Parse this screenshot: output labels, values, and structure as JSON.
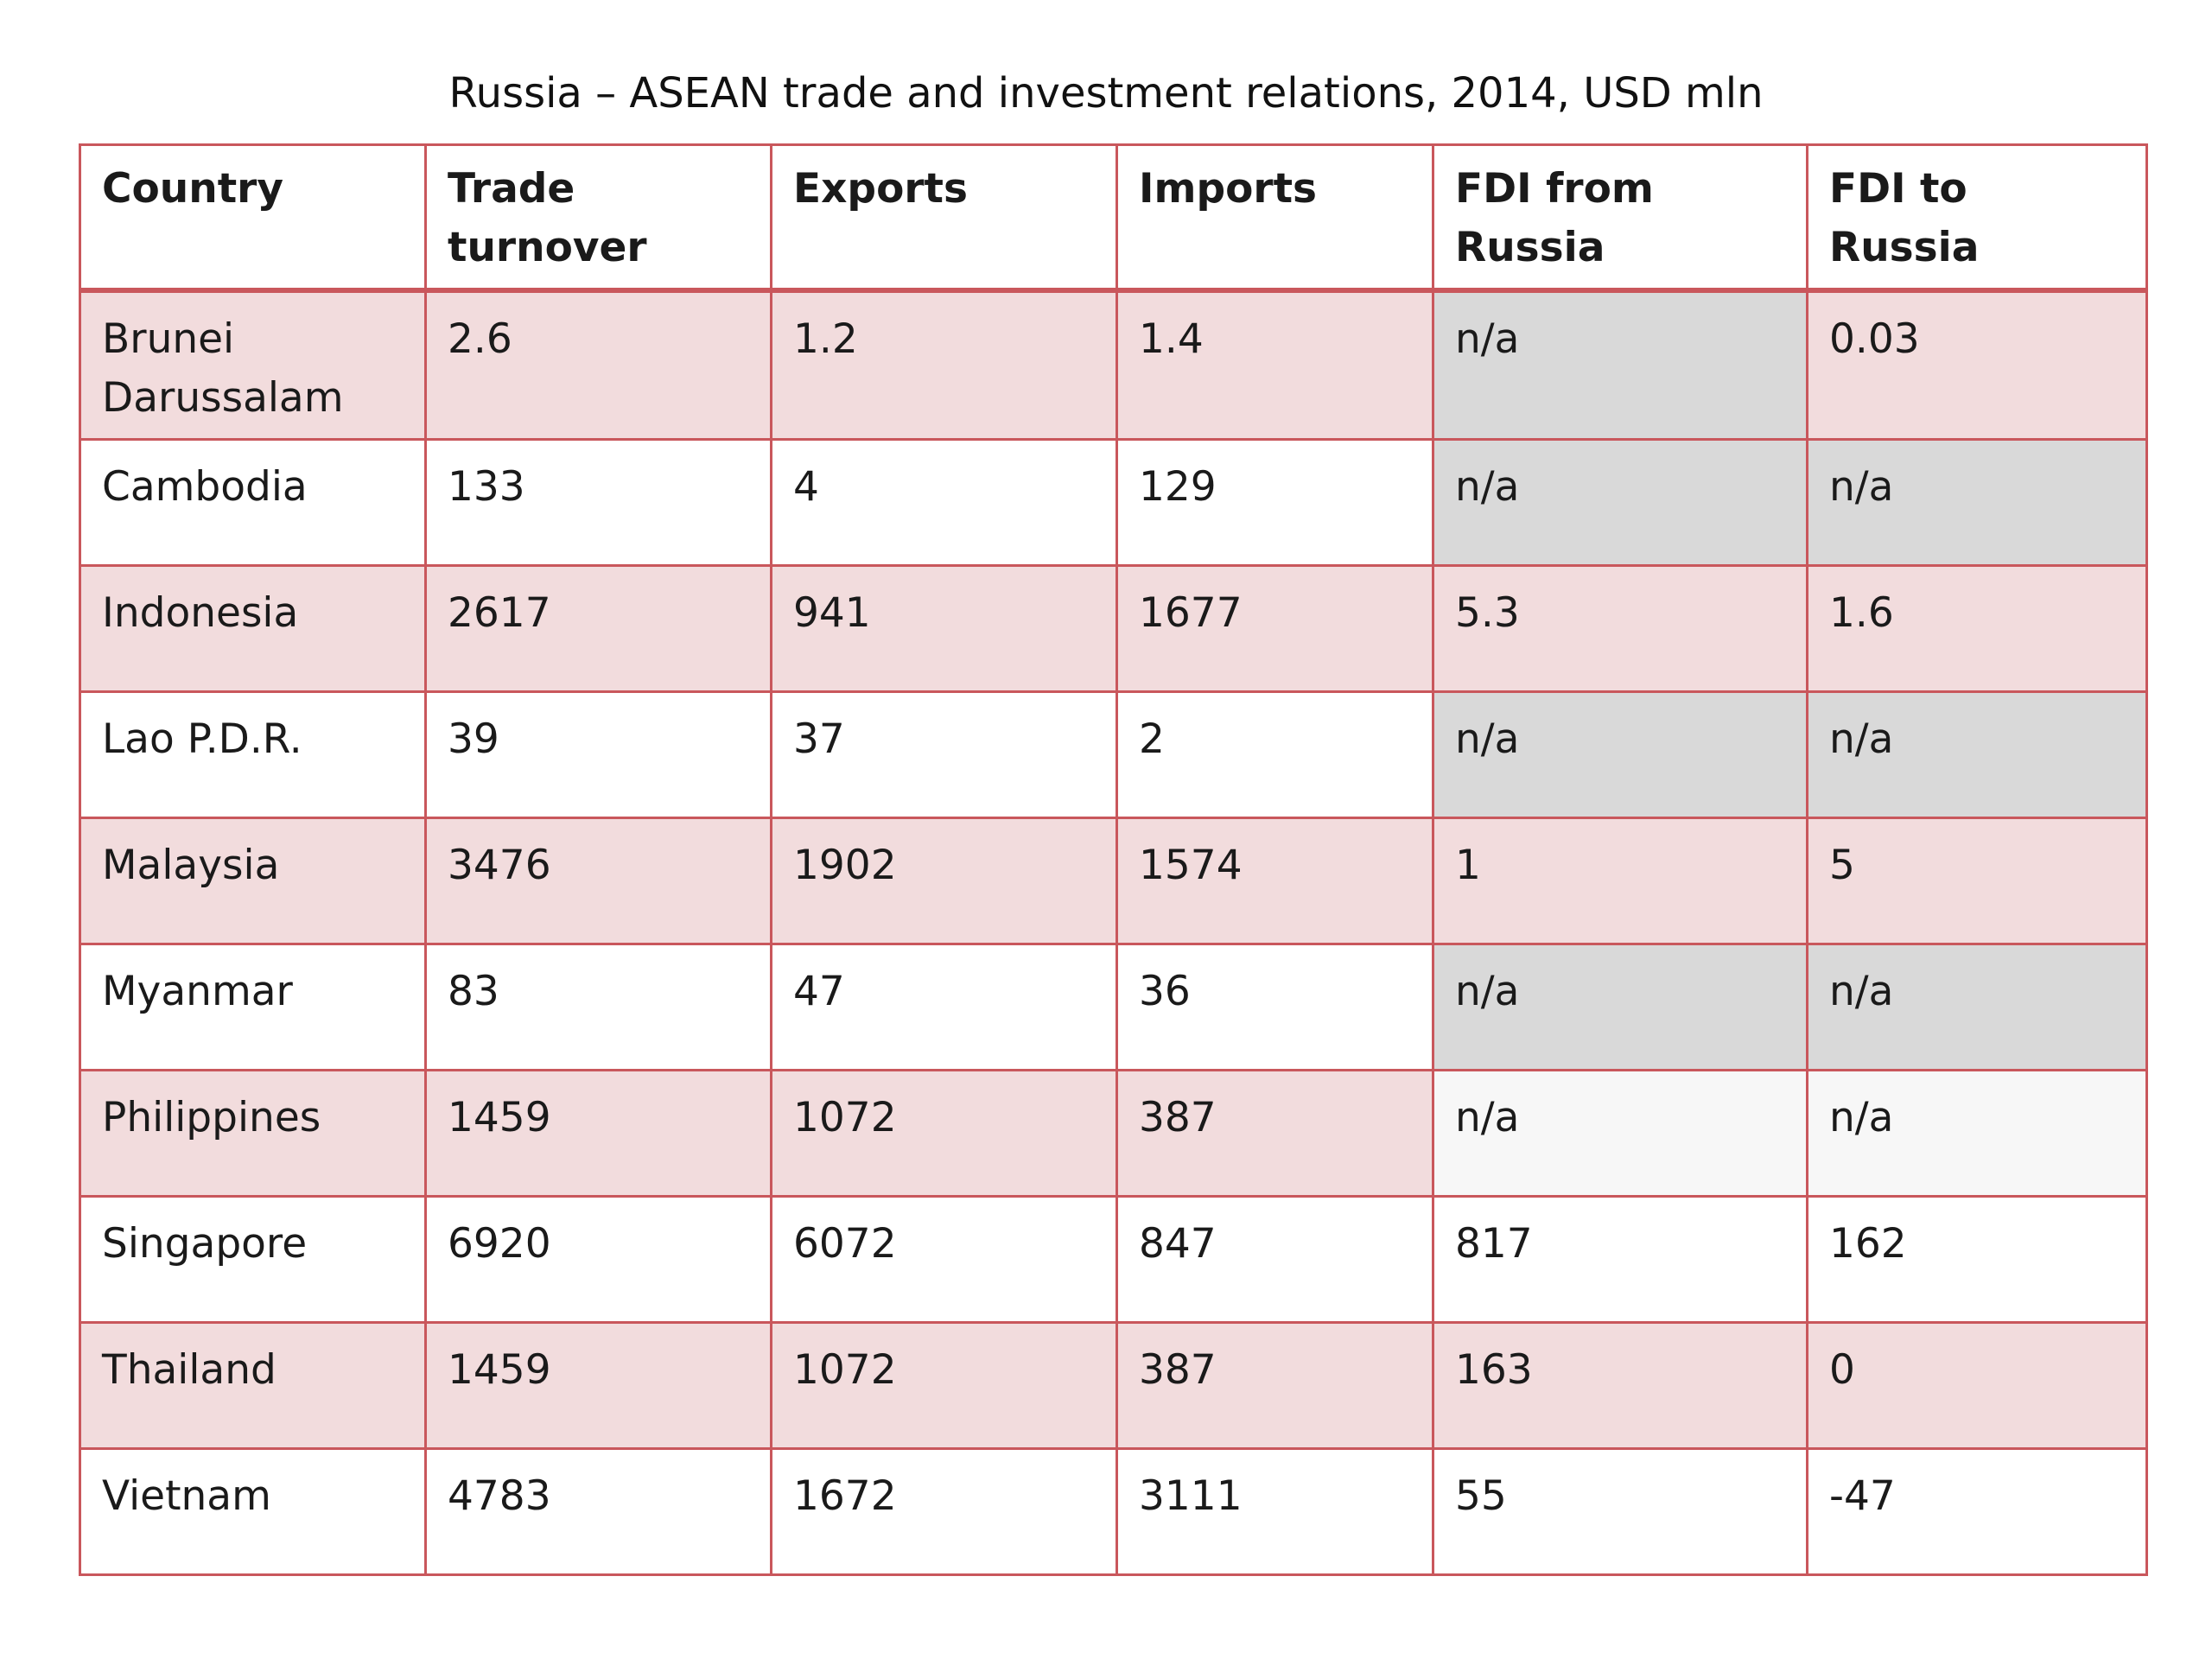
{
  "title": "Russia – ASEAN trade and investment relations, 2014, USD mln",
  "table": {
    "headers": [
      "Country",
      "Trade turnover",
      "Exports",
      "Imports",
      "FDI from Russia",
      "FDI to Russia"
    ],
    "rows": [
      [
        "Brunei Darussalam",
        "2.6",
        "1.2",
        "1.4",
        "n/a",
        "0.03"
      ],
      [
        "Cambodia",
        "133",
        "4",
        "129",
        "n/a",
        "n/a"
      ],
      [
        "Indonesia",
        "2617",
        "941",
        "1677",
        "5.3",
        "1.6"
      ],
      [
        "Lao P.D.R.",
        "39",
        "37",
        "2",
        "n/a",
        "n/a"
      ],
      [
        "Malaysia",
        "3476",
        "1902",
        "1574",
        "1",
        "5"
      ],
      [
        "Myanmar",
        "83",
        "47",
        "36",
        "n/a",
        "n/a"
      ],
      [
        "Philippines",
        "1459",
        "1072",
        "387",
        "n/a",
        "n/a"
      ],
      [
        "Singapore",
        "6920",
        "6072",
        "847",
        "817",
        "162"
      ],
      [
        "Thailand",
        "1459",
        "1072",
        "387",
        "163",
        "0"
      ],
      [
        "Vietnam",
        "4783",
        "1672",
        "3111",
        "55",
        "-47"
      ]
    ]
  },
  "colors": {
    "border": "#c9575c",
    "row_band": "#f2dcdd",
    "na_shade": "#d9d9d9",
    "na_light": "#f7f7f7"
  }
}
